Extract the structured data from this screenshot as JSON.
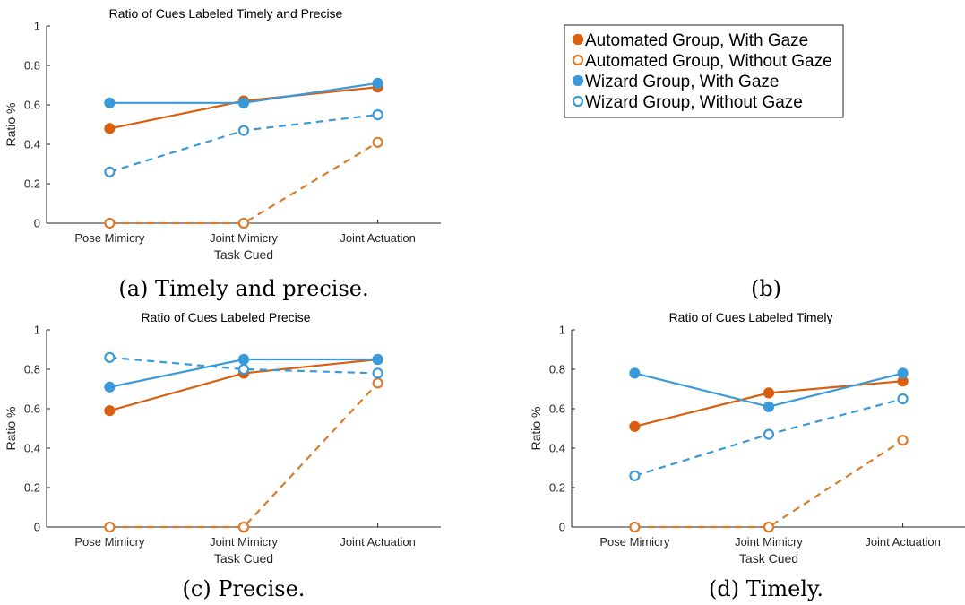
{
  "figure": {
    "legend": [
      {
        "label": "Automated Group, With Gaze",
        "color": "#D95F0E",
        "marker": "filled",
        "dash": false
      },
      {
        "label": "Automated Group, Without Gaze",
        "color": "#D97C2B",
        "marker": "open",
        "dash": true
      },
      {
        "label": "Wizard Group, With Gaze",
        "color": "#3A9AD9",
        "marker": "filled",
        "dash": false
      },
      {
        "label": "Wizard Group, Without Gaze",
        "color": "#3A9AD9",
        "marker": "open",
        "dash": true
      }
    ],
    "captions": {
      "a": "(a) Timely and precise.",
      "b": "(b)",
      "c": "(c) Precise.",
      "d": "(d) Timely."
    }
  },
  "chart_data": [
    {
      "id": "a",
      "type": "line",
      "title": "Ratio of Cues Labeled Timely and Precise",
      "xlabel": "Task Cued",
      "ylabel": "Ratio %",
      "categories": [
        "Pose Mimicry",
        "Joint Mimicry",
        "Joint Actuation"
      ],
      "ylim": [
        0,
        1
      ],
      "yticks": [
        "0",
        "0.2",
        "0.4",
        "0.6",
        "0.8",
        "1"
      ],
      "series": [
        {
          "name": "Automated Group, With Gaze",
          "values": [
            0.48,
            0.62,
            0.69
          ]
        },
        {
          "name": "Automated Group, Without Gaze",
          "values": [
            0.0,
            0.0,
            0.41
          ]
        },
        {
          "name": "Wizard Group, With Gaze",
          "values": [
            0.61,
            0.61,
            0.71
          ]
        },
        {
          "name": "Wizard Group, Without Gaze",
          "values": [
            0.26,
            0.47,
            0.55
          ]
        }
      ]
    },
    {
      "id": "c",
      "type": "line",
      "title": "Ratio of Cues Labeled  Precise",
      "xlabel": "Task Cued",
      "ylabel": "Ratio %",
      "categories": [
        "Pose Mimicry",
        "Joint Mimicry",
        "Joint Actuation"
      ],
      "ylim": [
        0,
        1
      ],
      "yticks": [
        "0",
        "0.2",
        "0.4",
        "0.6",
        "0.8",
        "1"
      ],
      "series": [
        {
          "name": "Automated Group, With Gaze",
          "values": [
            0.59,
            0.78,
            0.85
          ]
        },
        {
          "name": "Automated Group, Without Gaze",
          "values": [
            0.0,
            0.0,
            0.73
          ]
        },
        {
          "name": "Wizard Group, With Gaze",
          "values": [
            0.71,
            0.85,
            0.85
          ]
        },
        {
          "name": "Wizard Group, Without Gaze",
          "values": [
            0.86,
            0.8,
            0.78
          ]
        }
      ]
    },
    {
      "id": "d",
      "type": "line",
      "title": "Ratio of Cues Labeled Timely",
      "xlabel": "Task Cued",
      "ylabel": "Ratio %",
      "categories": [
        "Pose Mimicry",
        "Joint Mimicry",
        "Joint Actuation"
      ],
      "ylim": [
        0,
        1
      ],
      "yticks": [
        "0",
        "0.2",
        "0.4",
        "0.6",
        "0.8",
        "1"
      ],
      "series": [
        {
          "name": "Automated Group, With Gaze",
          "values": [
            0.51,
            0.68,
            0.74
          ]
        },
        {
          "name": "Automated Group, Without Gaze",
          "values": [
            0.0,
            0.0,
            0.44
          ]
        },
        {
          "name": "Wizard Group, With Gaze",
          "values": [
            0.78,
            0.61,
            0.78
          ]
        },
        {
          "name": "Wizard Group, Without Gaze",
          "values": [
            0.26,
            0.47,
            0.65
          ]
        }
      ]
    }
  ]
}
